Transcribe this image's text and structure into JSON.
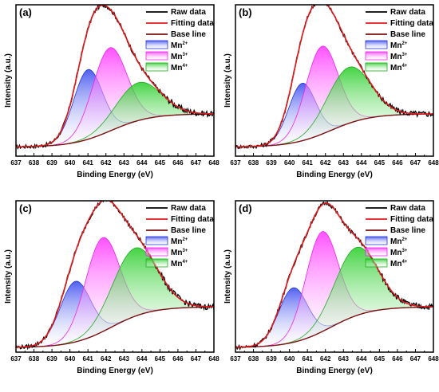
{
  "chart_data": [
    {
      "type": "line",
      "panel_label": "(a)",
      "xlabel": "Binding Energy (eV)",
      "ylabel": "Intensity (a.u.)",
      "xlim": [
        637,
        648
      ],
      "ylim": [
        0,
        1
      ],
      "xticks": [
        "637",
        "638",
        "639",
        "640",
        "641",
        "642",
        "643",
        "644",
        "645",
        "646",
        "647",
        "648"
      ],
      "legend_position": "top-right",
      "baseline": {
        "start": 0.06,
        "end": 0.28
      },
      "peaks": [
        {
          "name": "Mn2+",
          "center": 641.0,
          "sigma": 0.8,
          "height": 0.46
        },
        {
          "name": "Mn3+",
          "center": 642.2,
          "sigma": 0.95,
          "height": 0.55
        },
        {
          "name": "Mn4+",
          "center": 643.8,
          "sigma": 1.25,
          "height": 0.25
        }
      ],
      "raw_noise": 0.012
    },
    {
      "type": "line",
      "panel_label": "(b)",
      "xlabel": "Binding Energy (eV)",
      "ylabel": "Intensity (a.u.)",
      "xlim": [
        637,
        648
      ],
      "ylim": [
        0,
        1
      ],
      "xticks": [
        "637",
        "638",
        "639",
        "640",
        "641",
        "642",
        "643",
        "644",
        "645",
        "646",
        "647",
        "648"
      ],
      "legend_position": "top-right",
      "baseline": {
        "start": 0.06,
        "end": 0.28
      },
      "peaks": [
        {
          "name": "Mn2+",
          "center": 640.7,
          "sigma": 0.75,
          "height": 0.38
        },
        {
          "name": "Mn3+",
          "center": 641.8,
          "sigma": 0.9,
          "height": 0.58
        },
        {
          "name": "Mn4+",
          "center": 643.3,
          "sigma": 1.2,
          "height": 0.37
        }
      ],
      "raw_noise": 0.012
    },
    {
      "type": "line",
      "panel_label": "(c)",
      "xlabel": "Binding Energy (eV)",
      "ylabel": "Intensity (a.u.)",
      "xlim": [
        637,
        648
      ],
      "ylim": [
        0,
        1
      ],
      "xticks": [
        "637",
        "638",
        "639",
        "640",
        "641",
        "642",
        "643",
        "644",
        "645",
        "646",
        "647",
        "648"
      ],
      "legend_position": "top-right",
      "baseline": {
        "start": 0.03,
        "end": 0.3
      },
      "peaks": [
        {
          "name": "Mn2+",
          "center": 640.3,
          "sigma": 0.85,
          "height": 0.4
        },
        {
          "name": "Mn3+",
          "center": 641.8,
          "sigma": 0.95,
          "height": 0.62
        },
        {
          "name": "Mn4+",
          "center": 643.6,
          "sigma": 1.25,
          "height": 0.45
        }
      ],
      "raw_noise": 0.012
    },
    {
      "type": "line",
      "panel_label": "(d)",
      "xlabel": "Binding Energy (eV)",
      "ylabel": "Intensity (a.u.)",
      "xlim": [
        637,
        648
      ],
      "ylim": [
        0,
        1
      ],
      "xticks": [
        "637",
        "638",
        "639",
        "640",
        "641",
        "642",
        "643",
        "644",
        "645",
        "646",
        "647",
        "648"
      ],
      "legend_position": "top-right",
      "baseline": {
        "start": 0.03,
        "end": 0.3
      },
      "peaks": [
        {
          "name": "Mn2+",
          "center": 640.2,
          "sigma": 0.8,
          "height": 0.36
        },
        {
          "name": "Mn3+",
          "center": 641.8,
          "sigma": 0.9,
          "height": 0.66
        },
        {
          "name": "Mn4+",
          "center": 643.7,
          "sigma": 1.2,
          "height": 0.45
        }
      ],
      "raw_noise": 0.012
    }
  ],
  "legend": {
    "raw": "Raw data",
    "fit": "Fitting data",
    "base": "Base line",
    "mn2": "Mn",
    "mn2_sup": "2+",
    "mn3": "Mn",
    "mn3_sup": "3+",
    "mn4": "Mn",
    "mn4_sup": "4+"
  },
  "colors": {
    "raw": "#000000",
    "fit": "#e31a1c",
    "base": "#7a1010",
    "mn2_line": "#2233dd",
    "mn2_fill": "#3344ee",
    "mn3_line": "#ee22ee",
    "mn3_fill": "#ff33ff",
    "mn4_line": "#22aa22",
    "mn4_fill": "#22cc22"
  }
}
